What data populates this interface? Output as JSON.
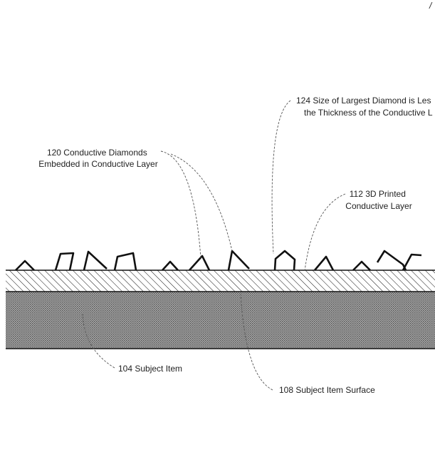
{
  "colors": {
    "ink": "#111111",
    "leader": "#555555",
    "subject_fill": "#8c8c8c",
    "background": "#ffffff"
  },
  "corner_mark": "/",
  "labels": {
    "diamonds": {
      "line1": "120 Conductive Diamonds",
      "line2": "Embedded in Conductive Layer"
    },
    "largest": {
      "line1": "124 Size of Largest Diamond is Les",
      "line2": "the Thickness of the Conductive L"
    },
    "layer": {
      "line1": "112 3D Printed",
      "line2": "Conductive Layer"
    },
    "subject_item": "104 Subject Item",
    "subject_surface": "108 Subject Item Surface"
  }
}
